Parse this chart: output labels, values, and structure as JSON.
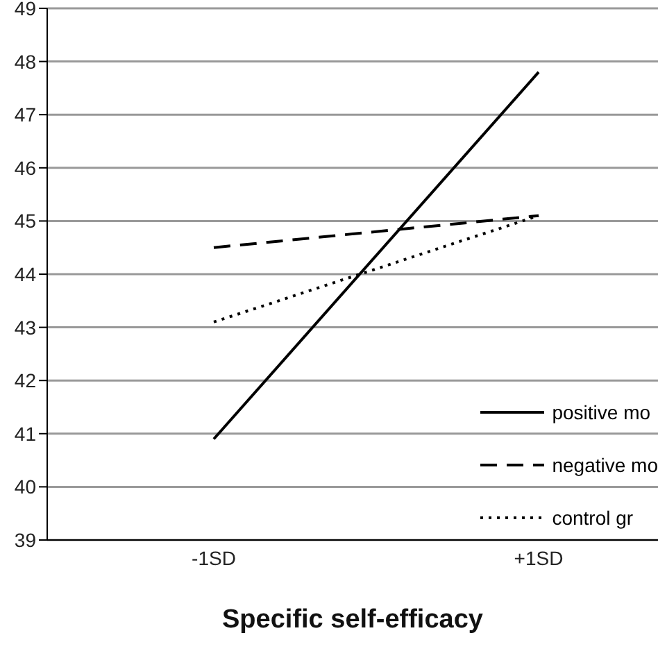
{
  "chart_data": {
    "type": "line",
    "xlabel": "Specific self-efficacy",
    "categories": [
      "-1SD",
      "+1SD"
    ],
    "series": [
      {
        "name": "positive mo",
        "color": "#000000",
        "line_style": "solid",
        "values": [
          40.9,
          47.8
        ]
      },
      {
        "name": "negative mo",
        "color": "#000000",
        "line_style": "dashed",
        "values": [
          44.5,
          45.1
        ]
      },
      {
        "name": "control gr",
        "color": "#000000",
        "line_style": "dotted",
        "values": [
          43.1,
          45.1
        ]
      }
    ],
    "ylim": [
      39,
      49
    ],
    "yticks": [
      39,
      40,
      41,
      42,
      43,
      44,
      45,
      46,
      47,
      48,
      49
    ],
    "grid": "y",
    "legend": "right",
    "marker": "none"
  }
}
